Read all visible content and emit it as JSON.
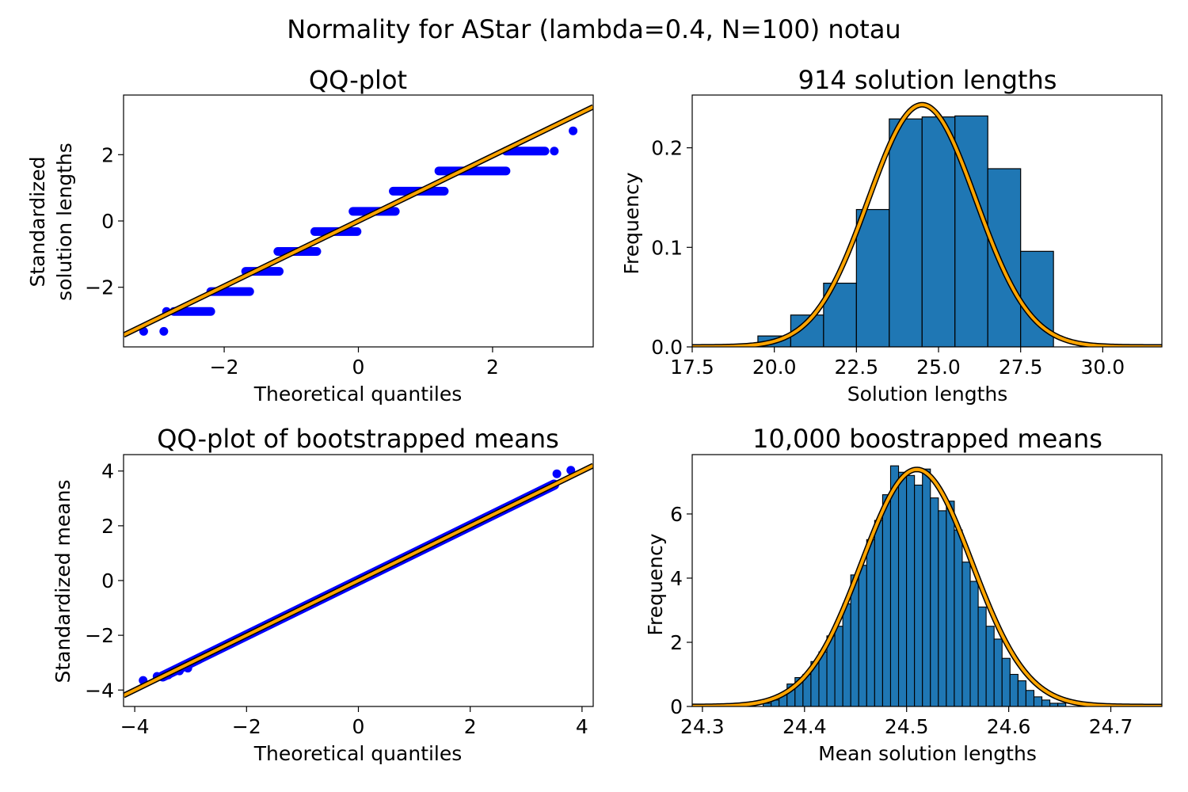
{
  "figure": {
    "suptitle": "Normality for AStar (lambda=0.4, N=100) notau"
  },
  "colors": {
    "points": "#0000ff",
    "bars": "#1f77b4",
    "bar_edge": "#000000",
    "fit_line": "#ffa500",
    "fit_outline": "#000000"
  },
  "chart_data": [
    {
      "id": "qq1",
      "type": "scatter",
      "title": "QQ-plot",
      "xlabel": "Theoretical quantiles",
      "ylabel": [
        "Standardized",
        "solution lengths"
      ],
      "xlim": [
        -3.5,
        3.5
      ],
      "ylim": [
        -3.8,
        3.8
      ],
      "xticks": [
        -2,
        0,
        2
      ],
      "xtick_labels": [
        "−2",
        "0",
        "2"
      ],
      "yticks": [
        -2,
        0,
        2
      ],
      "ytick_labels": [
        "−2",
        "0",
        "2"
      ],
      "reference_line": {
        "slope": 0.984,
        "intercept": 0.0
      },
      "steps": [
        {
          "x0": -2.75,
          "x1": -2.2,
          "y": -2.73
        },
        {
          "x0": -2.2,
          "x1": -1.62,
          "y": -2.13
        },
        {
          "x0": -1.68,
          "x1": -1.18,
          "y": -1.52
        },
        {
          "x0": -1.2,
          "x1": -0.62,
          "y": -0.92
        },
        {
          "x0": -0.65,
          "x1": -0.02,
          "y": -0.32
        },
        {
          "x0": -0.08,
          "x1": 0.55,
          "y": 0.29
        },
        {
          "x0": 0.52,
          "x1": 1.28,
          "y": 0.9
        },
        {
          "x0": 1.2,
          "x1": 2.2,
          "y": 1.51
        },
        {
          "x0": 2.2,
          "x1": 2.78,
          "y": 2.11
        }
      ],
      "points": [
        {
          "x": -3.2,
          "y": -3.33
        },
        {
          "x": -2.9,
          "y": -3.33
        },
        {
          "x": -2.86,
          "y": -2.73
        },
        {
          "x": 2.92,
          "y": 2.11
        },
        {
          "x": 3.2,
          "y": 2.72
        }
      ]
    },
    {
      "id": "hist1",
      "type": "bar",
      "title": "914 solution lengths",
      "xlabel": "Solution lengths",
      "ylabel": "Frequency",
      "xlim": [
        17.5,
        31.8
      ],
      "ylim": [
        0,
        0.253
      ],
      "xticks": [
        17.5,
        20.0,
        22.5,
        25.0,
        27.5,
        30.0
      ],
      "xtick_labels": [
        "17.5",
        "20.0",
        "22.5",
        "25.0",
        "27.5",
        "30.0"
      ],
      "yticks": [
        0.0,
        0.1,
        0.2
      ],
      "ytick_labels": [
        "0.0",
        "0.1",
        "0.2"
      ],
      "bin_edges": [
        19.5,
        20.5,
        21.5,
        22.5,
        23.5,
        24.5,
        25.5,
        26.5,
        27.5,
        28.5
      ],
      "values": [
        0.011,
        0.032,
        0.064,
        0.138,
        0.229,
        0.231,
        0.232,
        0.179,
        0.096,
        0.011
      ],
      "normal_fit": {
        "mean": 24.5,
        "sd": 1.64
      }
    },
    {
      "id": "qq2",
      "type": "scatter",
      "title": "QQ-plot of bootstrapped means",
      "xlabel": "Theoretical quantiles",
      "ylabel": "Standardized means",
      "xlim": [
        -4.2,
        4.2
      ],
      "ylim": [
        -4.6,
        4.6
      ],
      "xticks": [
        -4,
        -2,
        0,
        2,
        4
      ],
      "xtick_labels": [
        "−4",
        "−2",
        "0",
        "2",
        "4"
      ],
      "yticks": [
        -4,
        -2,
        0,
        2,
        4
      ],
      "ytick_labels": [
        "−4",
        "−2",
        "0",
        "2",
        "4"
      ],
      "reference_line": {
        "slope": 1.0,
        "intercept": 0.0
      },
      "dense_range": [
        -3.5,
        3.5
      ],
      "points": [
        {
          "x": -3.85,
          "y": -3.65
        },
        {
          "x": -3.6,
          "y": -3.5
        },
        {
          "x": -3.4,
          "y": -3.45
        },
        {
          "x": -3.2,
          "y": -3.3
        },
        {
          "x": -3.05,
          "y": -3.2
        },
        {
          "x": 3.55,
          "y": 3.9
        },
        {
          "x": 3.8,
          "y": 4.03
        }
      ]
    },
    {
      "id": "hist2",
      "type": "bar",
      "title": "10,000 boostrapped means",
      "xlabel": "Mean solution lengths",
      "ylabel": "Frequency",
      "xlim": [
        24.29,
        24.75
      ],
      "ylim": [
        0,
        7.85
      ],
      "xticks": [
        24.3,
        24.4,
        24.5,
        24.6,
        24.7
      ],
      "xtick_labels": [
        "24.3",
        "24.4",
        "24.5",
        "24.6",
        "24.7"
      ],
      "yticks": [
        0,
        2,
        4,
        6
      ],
      "ytick_labels": [
        "0",
        "2",
        "4",
        "6"
      ],
      "bin_start": 24.3595,
      "bin_width": 0.0078,
      "values": [
        0.1,
        0.2,
        0.4,
        0.7,
        0.9,
        1.0,
        1.4,
        1.7,
        2.2,
        2.5,
        3.2,
        4.1,
        4.4,
        5.2,
        5.8,
        6.6,
        7.5,
        7.3,
        7.2,
        6.9,
        7.4,
        6.5,
        6.1,
        6.4,
        5.5,
        4.5,
        3.9,
        3.1,
        2.5,
        2.1,
        1.5,
        1.0,
        0.8,
        0.5,
        0.3,
        0.2,
        0.1,
        0.1
      ],
      "normal_fit": {
        "mean": 24.51,
        "sd": 0.054
      }
    }
  ]
}
